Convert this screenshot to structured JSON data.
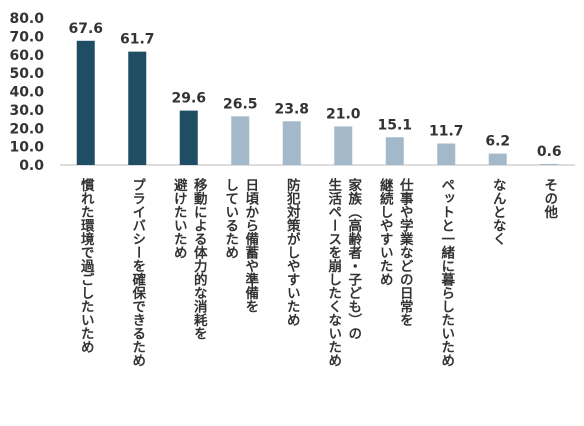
{
  "chart_data": {
    "type": "bar",
    "categories": [
      [
        "慣れた環境で過ごしたいため"
      ],
      [
        "プライバシーを確保できるため"
      ],
      [
        "移動による体力的な消耗を",
        "避けたいため"
      ],
      [
        "日頃から備蓄や準備を",
        "しているため"
      ],
      [
        "防犯対策がしやすいため"
      ],
      [
        "家族（高齢者・子ども）の",
        "生活ペースを崩したくないため"
      ],
      [
        "仕事や学業などの日常を",
        "継続しやすいため"
      ],
      [
        "ペットと一緒に暮らしたいため"
      ],
      [
        "なんとなく"
      ],
      [
        "その他"
      ]
    ],
    "values": [
      67.6,
      61.7,
      29.6,
      26.5,
      23.8,
      21.0,
      15.1,
      11.7,
      6.2,
      0.6
    ],
    "value_labels": [
      "67.6",
      "61.7",
      "29.6",
      "26.5",
      "23.8",
      "21.0",
      "15.1",
      "11.7",
      "6.2",
      "0.6"
    ],
    "colors": [
      "#1f4e64",
      "#1f4e64",
      "#1f4e64",
      "#a3b8c8",
      "#a3b8c8",
      "#a3b8c8",
      "#a3b8c8",
      "#a3b8c8",
      "#a3b8c8",
      "#a3b8c8"
    ],
    "ylim": [
      0,
      80
    ],
    "yticks": [
      {
        "value": 0,
        "label": "0.0"
      },
      {
        "value": 10,
        "label": "10.0"
      },
      {
        "value": 20,
        "label": "20.0"
      },
      {
        "value": 30,
        "label": "30.0"
      },
      {
        "value": 40,
        "label": "40.0"
      },
      {
        "value": 50,
        "label": "50.0"
      },
      {
        "value": 60,
        "label": "60.0"
      },
      {
        "value": 70,
        "label": "70.0"
      },
      {
        "value": 80,
        "label": "80.0"
      }
    ],
    "grid": false
  }
}
